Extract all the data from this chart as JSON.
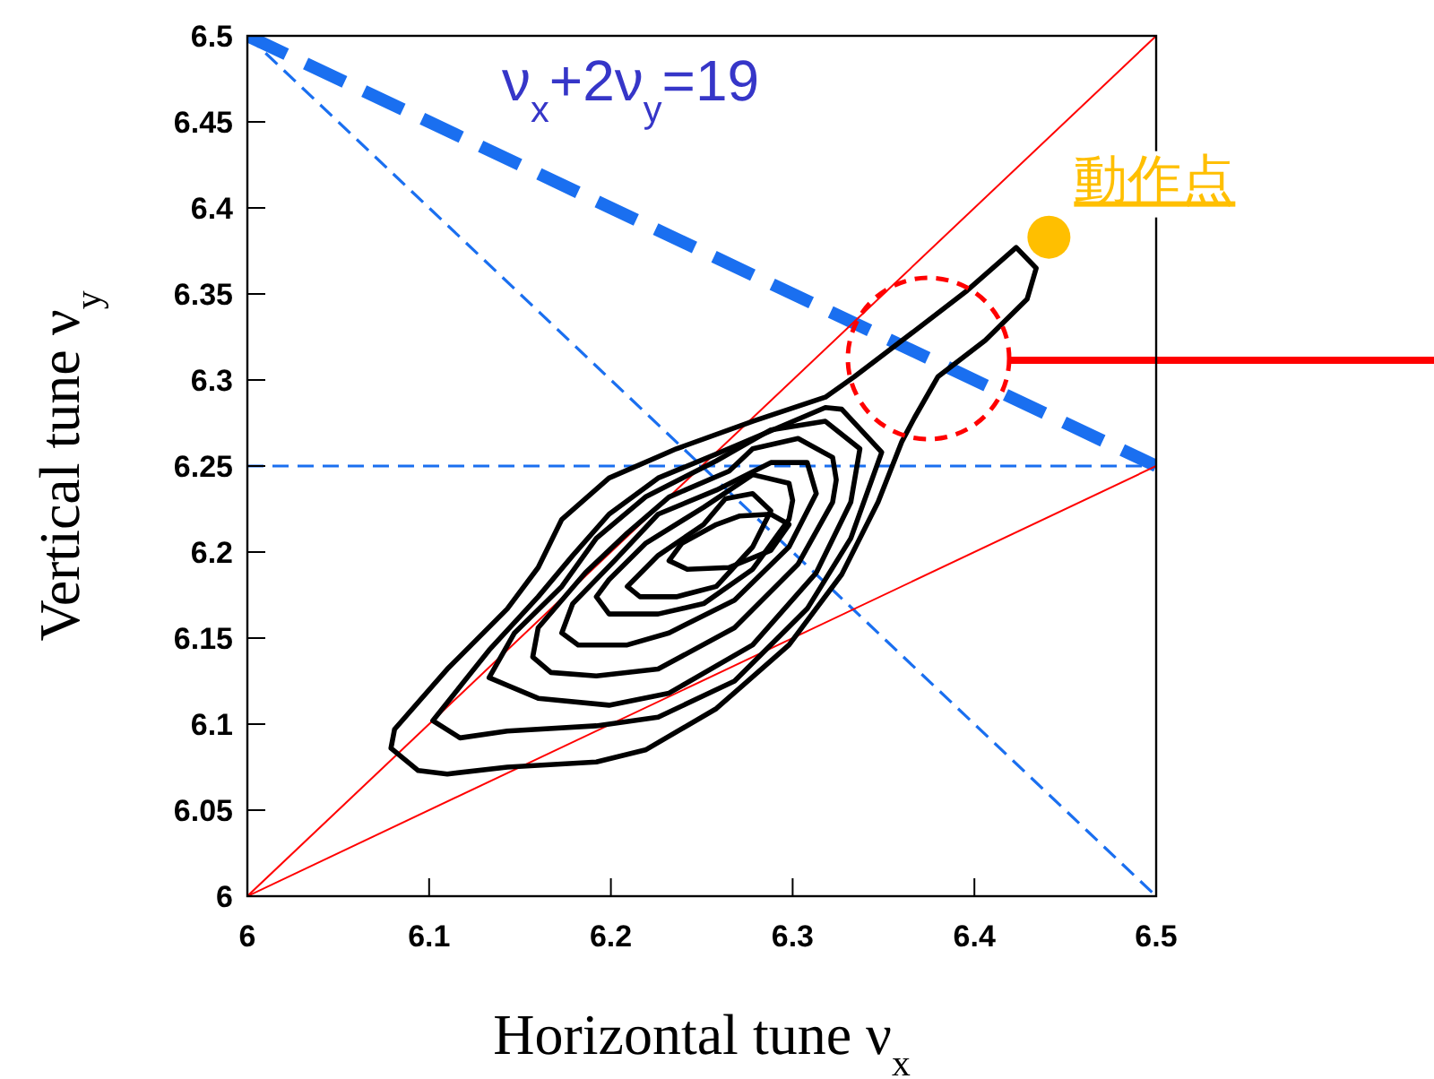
{
  "chart_data": {
    "type": "line",
    "xlabel": "Horizontal tune ν$_{x}$",
    "ylabel": "Vertical tune ν$_{y}$",
    "xlim": [
      6,
      6.5
    ],
    "ylim": [
      6,
      6.5
    ],
    "xticks": [
      6,
      6.1,
      6.2,
      6.3,
      6.4,
      6.5
    ],
    "yticks": [
      6,
      6.05,
      6.1,
      6.15,
      6.2,
      6.25,
      6.3,
      6.35,
      6.4,
      6.45,
      6.5
    ],
    "annotations": [
      "ν$_{x}$+2ν$_{y}$=19",
      {
        "text": "動作点",
        "x": 6.441,
        "y": 6.383
      }
    ],
    "ref_lines": [
      {
        "axis": "y",
        "value": 6.25,
        "color": "#1a6ff0",
        "line_style": "dashed"
      }
    ],
    "series": [
      {
        "color": "#1a6ff0",
        "line_style": "dashed",
        "x": [
          6,
          6.5
        ],
        "values": [
          6.5,
          6.25
        ]
      },
      {
        "color": "#1a6ff0",
        "line_style": "dashed",
        "x": [
          6,
          6.5
        ],
        "values": [
          6.5,
          6
        ]
      },
      {
        "color": "#ff0000",
        "line_style": "solid",
        "x": [
          6,
          6.5
        ],
        "values": [
          6,
          6.5
        ]
      },
      {
        "color": "#ff0000",
        "line_style": "solid",
        "x": [
          6,
          6.5
        ],
        "values": [
          6,
          6.25
        ]
      },
      {
        "type": "scatter",
        "color": "#ffbf00",
        "marker": "circle",
        "x": [
          6.441
        ],
        "values": [
          6.383
        ]
      }
    ]
  }
}
